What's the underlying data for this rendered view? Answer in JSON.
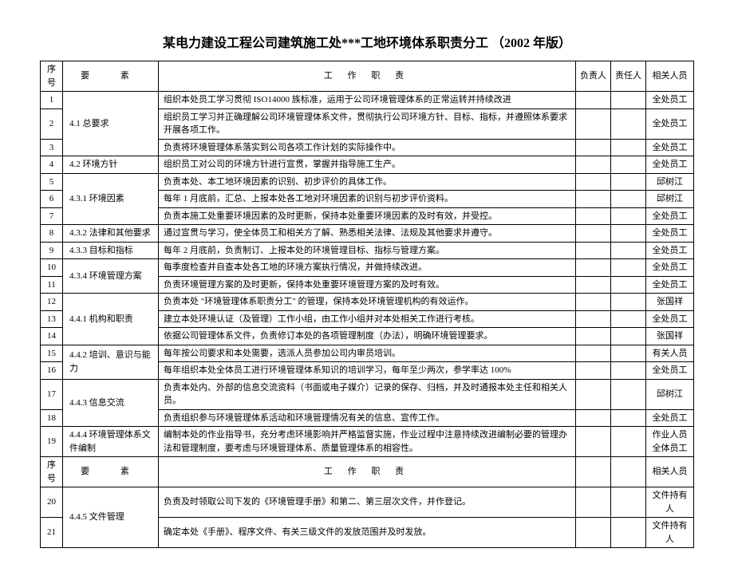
{
  "title": "某电力建设工程公司建筑施工处***工地环境体系职责分工 （2002 年版）",
  "headers": {
    "seq": "序号",
    "element": "要  素",
    "duty": "工 作 职 责",
    "owner": "负责人",
    "responsible": "责任人",
    "related": "相关人员"
  },
  "rows": [
    {
      "seq": "1",
      "duty": "组织本处员工学习贯彻 ISO14000 族标准，运用于公司环境管理体系的正常运转并持续改进",
      "related": "全处员工"
    },
    {
      "seq": "2",
      "duty": "组织员工学习并正确理解公司环境管理体系文件，贯彻执行公司环境方针、目标、指标，并遵照体系要求开展各项工作。",
      "related": "全处员工"
    },
    {
      "seq": "3",
      "duty": "负责将环境管理体系落实到公司各项工作计划的实际操作中。",
      "related": "全处员工"
    },
    {
      "seq": "4",
      "duty": "组织员工对公司的环境方针进行宣贯，掌握并指导施工生产。",
      "related": "全处员工"
    },
    {
      "seq": "5",
      "duty": "负责本处、本工地环境因素的识别、初步评价的具体工作。",
      "related": "邱树江"
    },
    {
      "seq": "6",
      "duty": "每年 1 月底前，汇总、上报本处各工地对环境因素的识别与初步评价资料。",
      "related": "邱树江"
    },
    {
      "seq": "7",
      "duty": "负责本施工处重要环境因素的及时更新，保持本处重要环境因素的及时有效，并受控。",
      "related": "全处员工"
    },
    {
      "seq": "8",
      "duty": "通过宣贯与学习，使全体员工和相关方了解、熟悉相关法律、法规及其他要求并遵守。",
      "related": "全处员工"
    },
    {
      "seq": "9",
      "duty": "每年 2 月底前，负责制订、上报本处的环境管理目标、指标与管理方案。",
      "related": "全处员工"
    },
    {
      "seq": "10",
      "duty": "每季度检查并自查本处各工地的环境方案执行情况，并做持续改进。",
      "related": "全处员工"
    },
    {
      "seq": "11",
      "duty": "负责环境管理方案的及时更新，保持本处重要环境管理方案的及时有效。",
      "related": "全处员工"
    },
    {
      "seq": "12",
      "duty": "负责本处 \"环境管理体系职责分工\" 的管理，保持本处环境管理机构的有效运作。",
      "related": "张国祥"
    },
    {
      "seq": "13",
      "duty": "建立本处环境认证（及管理）工作小组，由工作小组并对本处相关工作进行考核。",
      "related": "全处员工"
    },
    {
      "seq": "14",
      "duty": "依据公司管理体系文件，负责修订本处的各项管理制度（办法），明确环境管理要求。",
      "related": "张国祥"
    },
    {
      "seq": "15",
      "duty": "每年按公司要求和本处需要，选派人员参加公司内审员培训。",
      "related": "有关人员"
    },
    {
      "seq": "16",
      "duty": "每年组织本处全体员工进行环境管理体系知识的培训学习，每年至少两次，参学率达 100%",
      "related": "全处员工"
    },
    {
      "seq": "17",
      "duty": "负责本处内、外部的信息交流资料（书面或电子媒介）记录的保存、归档，并及时通报本处主任和相关人员。",
      "related": "邱树江"
    },
    {
      "seq": "18",
      "duty": "负责组织参与环境管理体系活动和环境管理情况有关的信息、宣传工作。",
      "related": "全处员工"
    },
    {
      "seq": "19",
      "duty": "编制本处的作业指导书，充分考虑环境影响并严格监督实施，作业过程中注意持续改进编制必要的管理办法和管理制度，要考虑与环境管理体系、质量管理体系的相容性。",
      "related": "作业人员\n全体员工"
    },
    {
      "seq": "20",
      "duty": "负责及时领取公司下发的《环境管理手册》和第二、第三层次文件，并作登记。",
      "related": "文件持有人"
    },
    {
      "seq": "21",
      "duty": "确定本处《手册》、程序文件、有关三级文件的发放范围并及时发放。",
      "related": "文件持有人"
    }
  ],
  "elements": {
    "e1": "4.1 总要求",
    "e2": "4.2 环境方针",
    "e3": "4.3.1 环境因素",
    "e4": "4.3.2 法律和其他要求",
    "e5": "4.3.3 目标和指标",
    "e6": "4.3.4 环境管理方案",
    "e7": "4.4.1 机构和职责",
    "e8": "4.4.2 培训、意识与能力",
    "e9": "4.4.3 信息交流",
    "e10": "4.4.4 环境管理体系文件编制",
    "e11": "4.4.5 文件管理"
  }
}
